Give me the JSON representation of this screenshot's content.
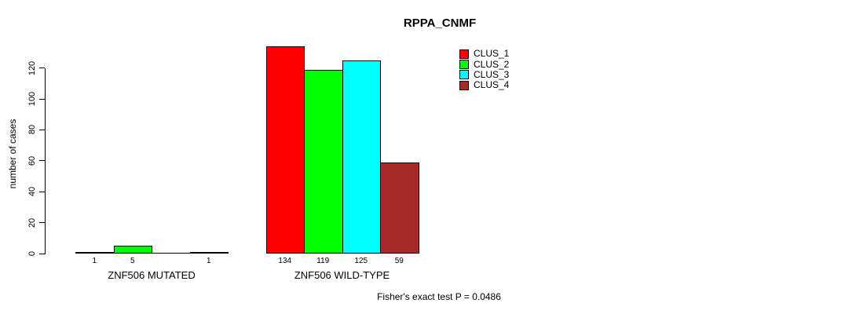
{
  "title": "RPPA_CNMF",
  "footer": "Fisher's exact test P = 0.0486",
  "chart_data": {
    "type": "bar",
    "title": "RPPA_CNMF",
    "ylabel": "number of cases",
    "xlabel": "",
    "yticks": [
      0,
      20,
      40,
      60,
      80,
      100,
      120
    ],
    "ylim": [
      0,
      140
    ],
    "grid": false,
    "legend_position": "top-right",
    "series": [
      {
        "name": "CLUS_1",
        "color": "#ff0000"
      },
      {
        "name": "CLUS_2",
        "color": "#00ff00"
      },
      {
        "name": "CLUS_3",
        "color": "#00ffff"
      },
      {
        "name": "CLUS_4",
        "color": "#a52a2a"
      }
    ],
    "groups": [
      {
        "label": "ZNF506 MUTATED",
        "values": [
          1,
          5,
          0,
          1
        ],
        "bar_labels": [
          "1",
          "5",
          "",
          "1"
        ]
      },
      {
        "label": "ZNF506 WILD-TYPE",
        "values": [
          134,
          119,
          125,
          59
        ],
        "bar_labels": [
          "134",
          "119",
          "125",
          "59"
        ]
      }
    ]
  }
}
